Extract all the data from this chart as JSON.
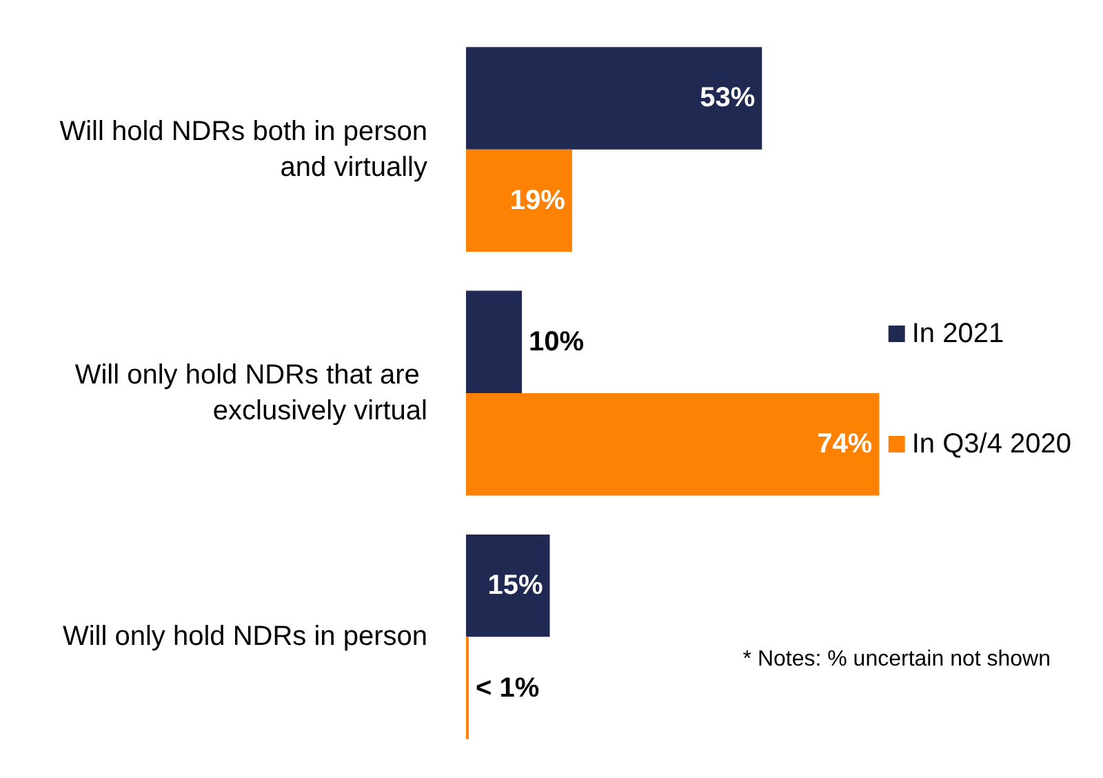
{
  "chart_data": {
    "type": "bar",
    "orientation": "horizontal",
    "categories": [
      "Will hold NDRs both in person and virtually",
      "Will only hold NDRs that are exclusively virtual",
      "Will only hold NDRs in person"
    ],
    "series": [
      {
        "name": "In 2021",
        "color": "#1f2951",
        "values": [
          53,
          10,
          15
        ],
        "value_labels": [
          "53%",
          "10%",
          "15%"
        ]
      },
      {
        "name": "In Q3/4 2020",
        "color": "#fd8204",
        "values": [
          19,
          74,
          0.5
        ],
        "value_labels": [
          "19%",
          "74%",
          "< 1%"
        ]
      }
    ],
    "legend": "right",
    "grid": false,
    "tick_labels": "y",
    "annotations": [
      "* Notes: % uncertain not shown"
    ]
  }
}
